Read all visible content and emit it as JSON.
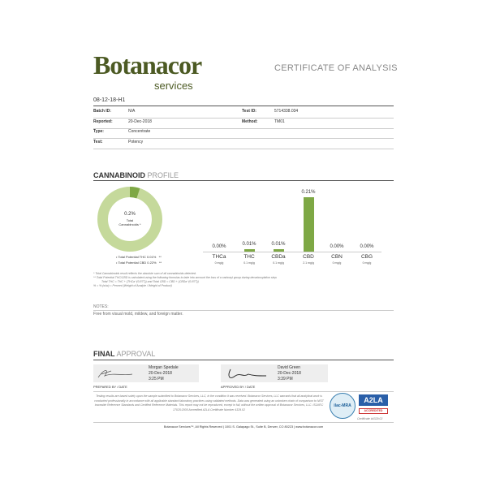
{
  "header": {
    "logo_main": "Botanacor",
    "logo_sub": "services",
    "title": "CERTIFICATE OF ANALYSIS"
  },
  "sample": {
    "lot": "08-12-18-H1",
    "rows": [
      {
        "label": "Batch ID:",
        "value": "N/A",
        "label2": "Test ID:",
        "value2": "5714338.034"
      },
      {
        "label": "Reported:",
        "value": "20-Dec-2018",
        "label2": "Method:",
        "value2": "TM01"
      },
      {
        "label": "Type:",
        "value": "Concentrate",
        "label2": "",
        "value2": ""
      },
      {
        "label": "Test:",
        "value": "Potency",
        "label2": "",
        "value2": ""
      }
    ]
  },
  "profile": {
    "title_bold": "CANNABINOID",
    "title_light": "PROFILE",
    "donut": {
      "value": "0.2%",
      "label1": "Total",
      "label2": "Cannabinoids *",
      "fraction": 0.05,
      "color_fill": "#7ea845",
      "color_rest": "#c5d99b"
    },
    "legend": [
      {
        "label": "Total Potential THC",
        "value": "0.01%",
        "mark": "**"
      },
      {
        "label": "Total Potential CBD",
        "value": "0.22%",
        "mark": "**"
      }
    ],
    "footnotes": [
      "* Total Cannabinoids result reflects the absolute sum of all cannabinoids detected.",
      "** Total Potential THC/CBD is calculated using the following formulas to take into account the loss of a carboxyl group during decarboxylation step.",
      "Total THC = THC + (THCa *(0.877)) and Total CBD = CBD + (CBDa *(0.877))",
      "% = % (w/w) = Percent (Weight of Analyte / Weight of Product)"
    ]
  },
  "chart_data": {
    "type": "bar",
    "categories": [
      "THCa",
      "THC",
      "CBDa",
      "CBD",
      "CBN",
      "CBG"
    ],
    "values": [
      0.0,
      0.01,
      0.01,
      0.21,
      0.0,
      0.0
    ],
    "labels": [
      "0.00%",
      "0.01%",
      "0.01%",
      "0.21%",
      "0.00%",
      "0.00%"
    ],
    "sublabels": [
      "0 mg/g",
      "0.1 mg/g",
      "0.1 mg/g",
      "2.1 mg/g",
      "0 mg/g",
      "0 mg/g"
    ],
    "color": "#7ea845"
  },
  "notes": {
    "title": "NOTES:",
    "text": "Free from visual mold, mildew, and foreign matter."
  },
  "approval": {
    "title_bold": "FINAL",
    "title_light": "APPROVAL",
    "prepared": {
      "name": "Morgan Spedale",
      "date": "20-Dec-2018",
      "time": "3:25 PM",
      "caption": "PREPARED BY / DATE"
    },
    "approved": {
      "name": "David Green",
      "date": "20-Dec-2018",
      "time": "3:39 PM",
      "caption": "APPROVED BY / DATE"
    }
  },
  "disclaimer": "Testing results are based solely upon the sample submitted to Botanacor Services, LLC, in the condition it was received. Botanacor Services, LLC warrants that all analytical work is conducted professionally in accordance with all applicable standard laboratory practices using validated methods. Data was generated using an unbroken chain of comparison to NIST traceable Reference Standards and Certified Reference Materials. This report may not be reproduced, except in full, without the written approval of Botanacor Services, LLC. ISO/IEC 17025:2005 Accredited A2LA Certificate Number 4329.02",
  "accreditation": {
    "ilac": "ilac-MRA",
    "a2la": "A2LA",
    "accredited": "ACCREDITED",
    "cert": "Certificate #4329.02"
  },
  "footer": "Botanacor Services™, All Rights Reserved | 1001 S. Galapago St., Suite B, Denver, CO 80223 | www.botanacor.com"
}
